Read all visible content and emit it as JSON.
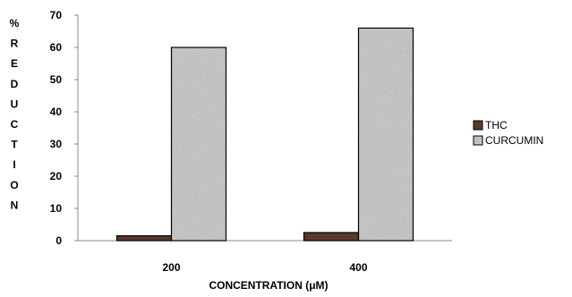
{
  "chart_data": {
    "type": "bar",
    "title": "",
    "xlabel": "CONCENTRATION (μM)",
    "ylabel": "% REDUCTION",
    "categories": [
      "200",
      "400"
    ],
    "ylim": [
      0,
      70
    ],
    "yticks": [
      0,
      10,
      20,
      30,
      40,
      50,
      60,
      70
    ],
    "grid": false,
    "legend_position": "right",
    "series": [
      {
        "name": "THC",
        "values": [
          1.5,
          2.5
        ],
        "color": "#5a3a2a"
      },
      {
        "name": "CURCUMIN",
        "values": [
          60,
          66
        ],
        "color": "#9a9a9a",
        "pattern": "speckled"
      }
    ]
  }
}
